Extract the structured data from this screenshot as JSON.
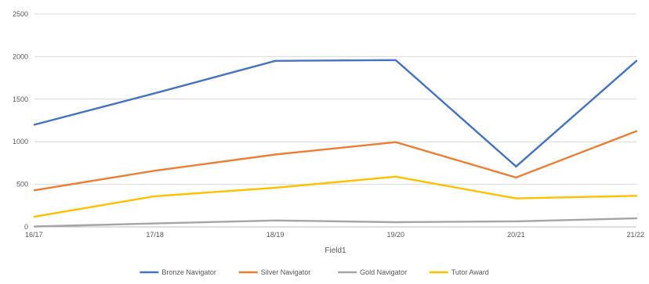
{
  "chart_data": {
    "type": "line",
    "title": "",
    "xlabel": "Field1",
    "ylabel": "",
    "categories": [
      "16/17",
      "17/18",
      "18/19",
      "19/20",
      "20/21",
      "21/22"
    ],
    "ylim": [
      0,
      2500
    ],
    "yticks": [
      0,
      500,
      1000,
      1500,
      2000,
      2500
    ],
    "grid": true,
    "legend_position": "bottom",
    "series": [
      {
        "name": "Bronze Navigator",
        "color": "#4472c4",
        "values": [
          1200,
          1570,
          1950,
          1960,
          710,
          1950
        ]
      },
      {
        "name": "Silver Navigator",
        "color": "#ed7d31",
        "values": [
          430,
          660,
          850,
          995,
          580,
          1125
        ]
      },
      {
        "name": "Gold Navigator",
        "color": "#a5a5a5",
        "values": [
          5,
          40,
          75,
          55,
          65,
          100
        ]
      },
      {
        "name": "Tutor Award",
        "color": "#ffc000",
        "values": [
          120,
          360,
          460,
          590,
          335,
          365
        ]
      }
    ]
  }
}
